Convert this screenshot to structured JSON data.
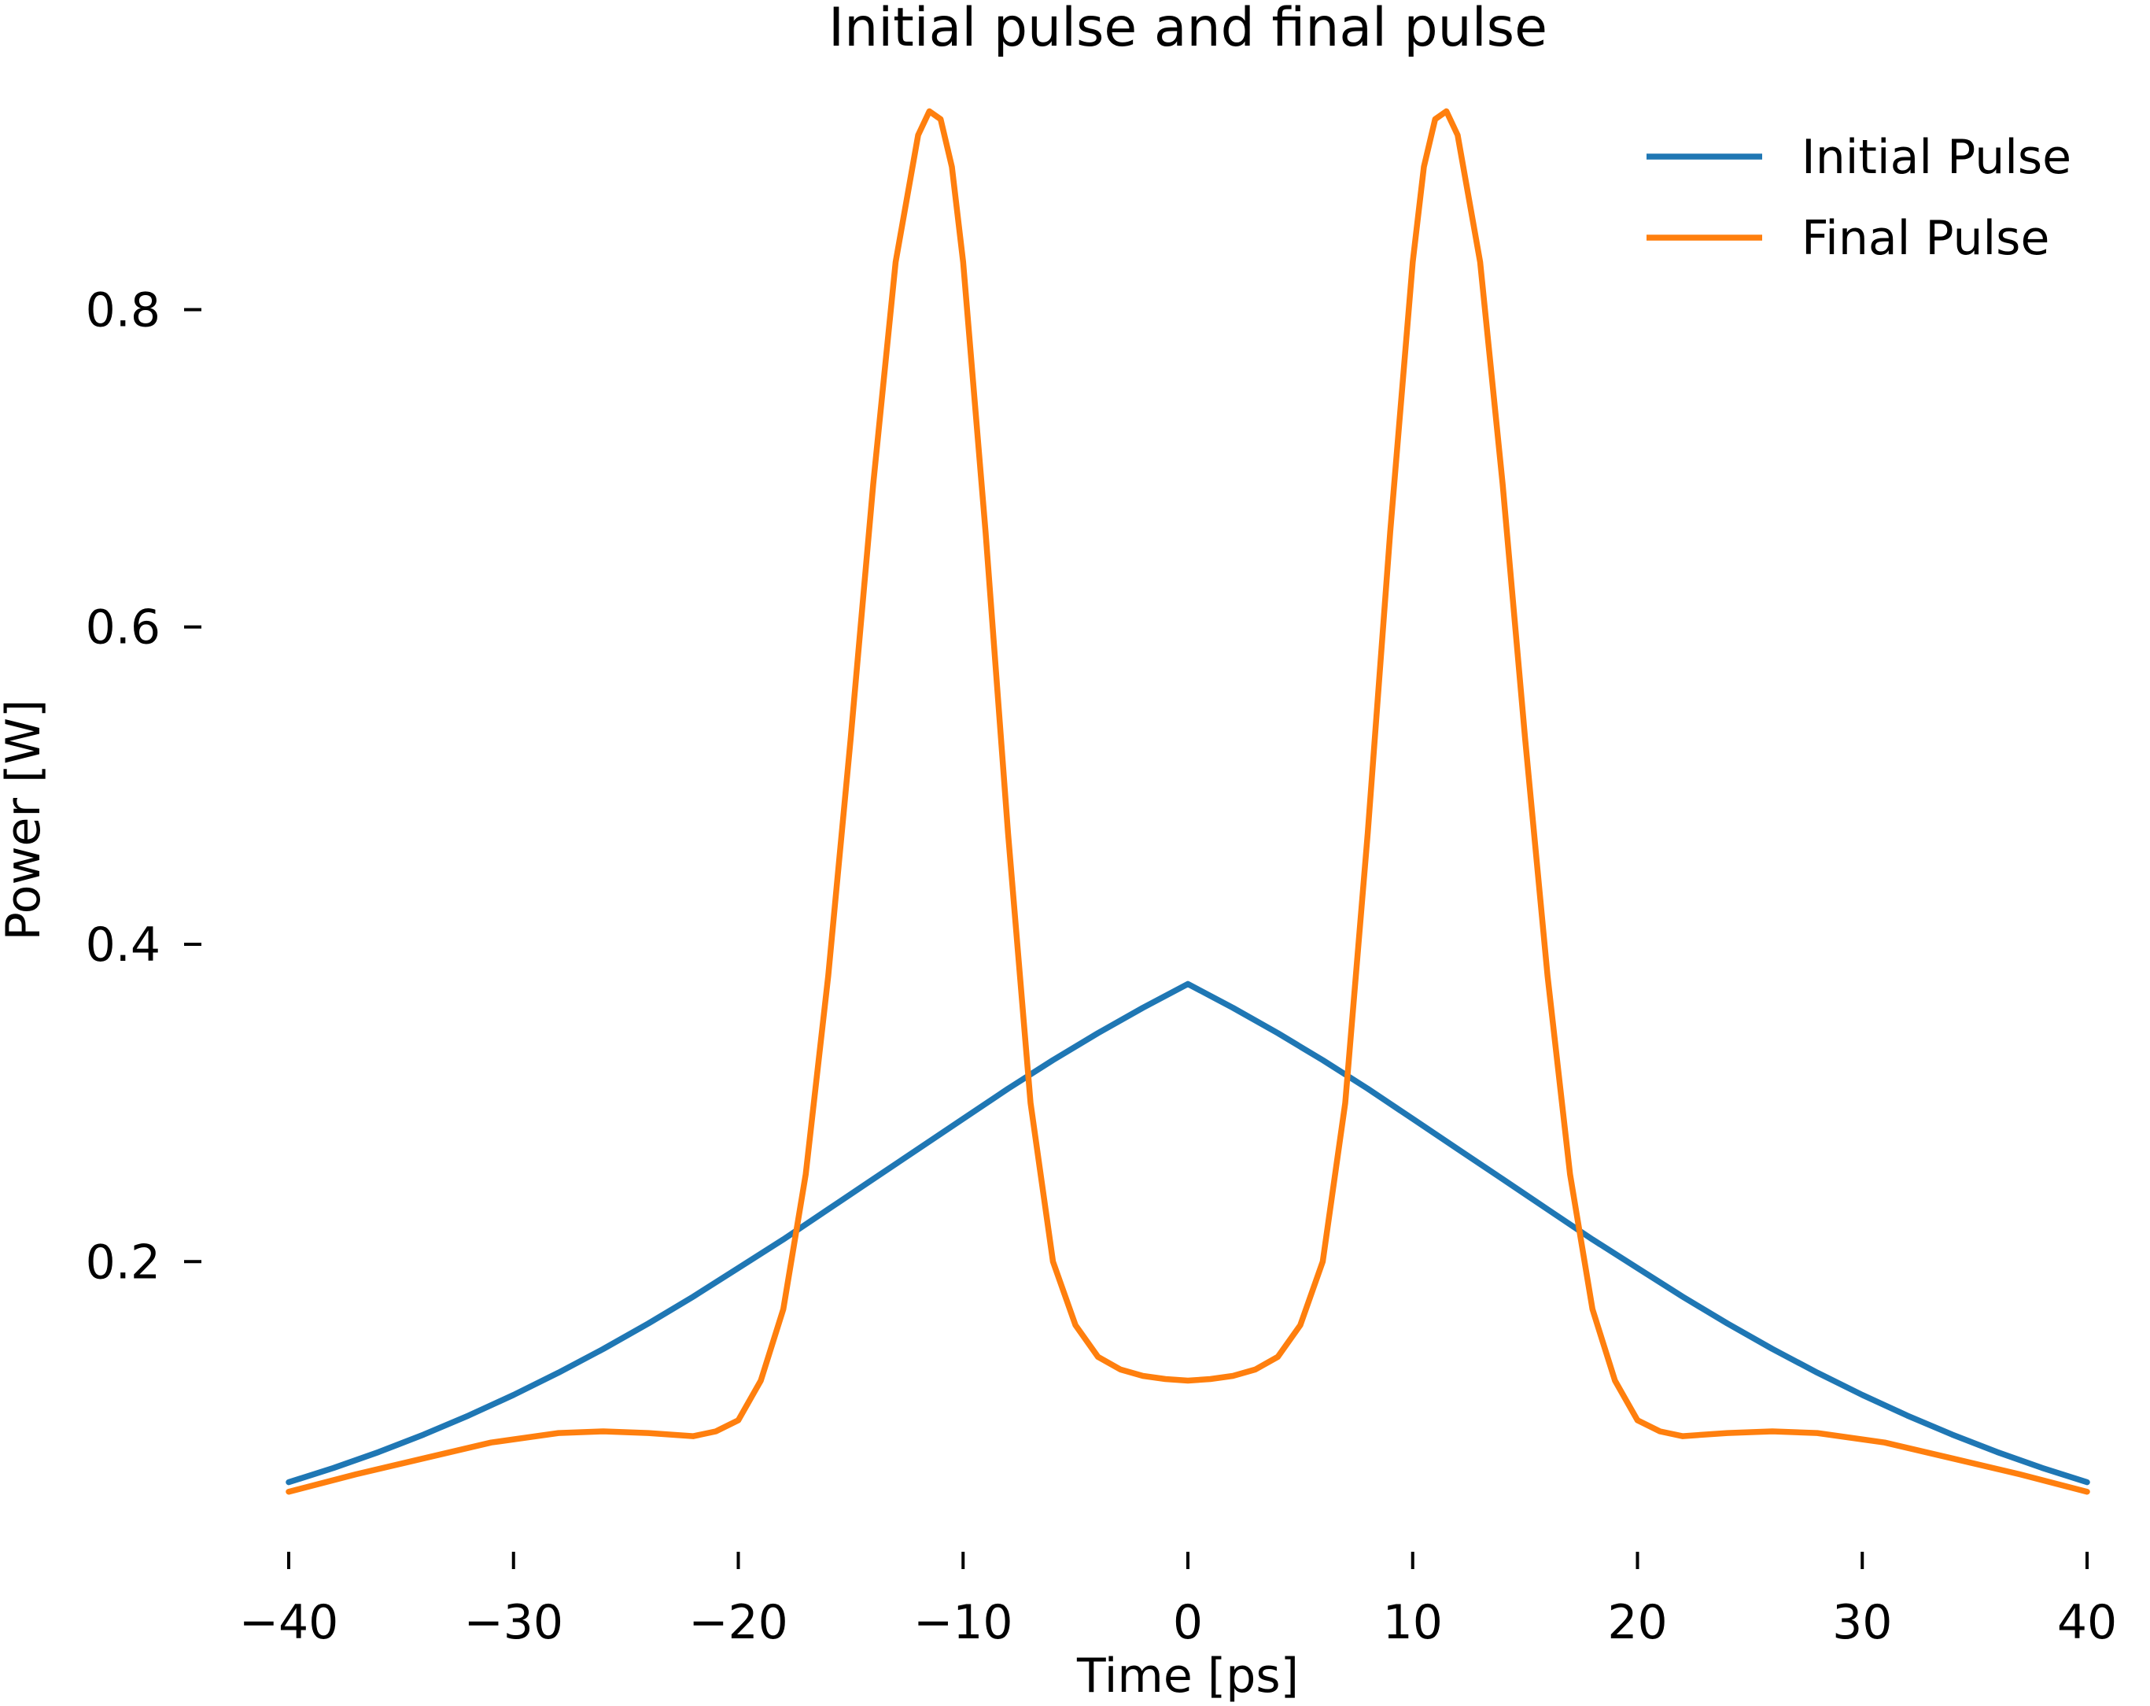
{
  "chart_data": {
    "type": "line",
    "title": "Initial pulse and final pulse",
    "xlabel": "Time [ps]",
    "ylabel": "Power [W]",
    "xlim": [
      -40,
      40
    ],
    "ylim": [
      0.035,
      0.95
    ],
    "x_ticks": [
      -40,
      -30,
      -20,
      -10,
      0,
      10,
      20,
      30,
      40
    ],
    "x_tick_labels": [
      "−40",
      "−30",
      "−20",
      "−10",
      "0",
      "10",
      "20",
      "30",
      "40"
    ],
    "y_ticks": [
      0.2,
      0.4,
      0.6,
      0.8
    ],
    "y_tick_labels": [
      "0.2",
      "0.4",
      "0.6",
      "0.8"
    ],
    "grid": false,
    "legend_position": "top-right",
    "series": [
      {
        "name": "Initial Pulse",
        "color": "#1f77b4",
        "x": [
          -40,
          -38,
          -36,
          -34,
          -32,
          -30,
          -28,
          -26,
          -24,
          -22,
          -20,
          -18,
          -16,
          -14,
          -12,
          -10,
          -8,
          -6,
          -4,
          -2,
          0,
          2,
          4,
          6,
          8,
          10,
          12,
          14,
          16,
          18,
          20,
          22,
          24,
          26,
          28,
          30,
          32,
          34,
          36,
          38,
          40
        ],
        "y": [
          0.061,
          0.07,
          0.08,
          0.091,
          0.103,
          0.116,
          0.13,
          0.145,
          0.161,
          0.178,
          0.196,
          0.214,
          0.233,
          0.252,
          0.271,
          0.29,
          0.309,
          0.327,
          0.344,
          0.36,
          0.375,
          0.36,
          0.344,
          0.327,
          0.309,
          0.29,
          0.271,
          0.252,
          0.233,
          0.214,
          0.196,
          0.178,
          0.161,
          0.145,
          0.13,
          0.116,
          0.103,
          0.091,
          0.08,
          0.07,
          0.061
        ]
      },
      {
        "name": "Final Pulse",
        "color": "#ff7f0e",
        "x": [
          -40,
          -37,
          -34,
          -31,
          -28,
          -26,
          -24,
          -22,
          -21,
          -20,
          -19,
          -18,
          -17,
          -16,
          -15,
          -14,
          -13,
          -12,
          -11.5,
          -11,
          -10.5,
          -10,
          -9,
          -8,
          -7,
          -6,
          -5,
          -4,
          -3,
          -2,
          -1,
          0,
          1,
          2,
          3,
          4,
          5,
          6,
          7,
          8,
          9,
          10,
          10.5,
          11,
          11.5,
          12,
          13,
          14,
          15,
          16,
          17,
          18,
          19,
          20,
          21,
          22,
          24,
          26,
          28,
          31,
          34,
          37,
          40
        ],
        "y": [
          0.055,
          0.066,
          0.076,
          0.086,
          0.092,
          0.093,
          0.092,
          0.09,
          0.093,
          0.1,
          0.125,
          0.17,
          0.255,
          0.38,
          0.53,
          0.69,
          0.83,
          0.91,
          0.925,
          0.92,
          0.89,
          0.83,
          0.66,
          0.47,
          0.3,
          0.2,
          0.16,
          0.14,
          0.132,
          0.128,
          0.126,
          0.125,
          0.126,
          0.128,
          0.132,
          0.14,
          0.16,
          0.2,
          0.3,
          0.47,
          0.66,
          0.83,
          0.89,
          0.92,
          0.925,
          0.91,
          0.83,
          0.69,
          0.53,
          0.38,
          0.255,
          0.17,
          0.125,
          0.1,
          0.093,
          0.09,
          0.092,
          0.093,
          0.092,
          0.086,
          0.076,
          0.066,
          0.055
        ]
      }
    ]
  }
}
